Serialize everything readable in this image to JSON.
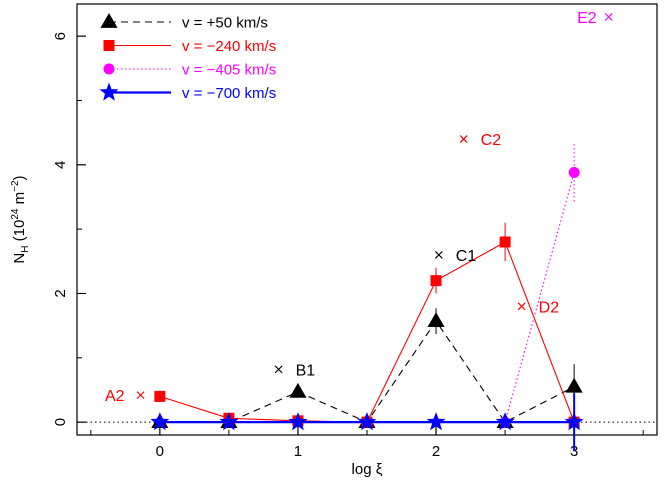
{
  "chart_data": {
    "type": "line",
    "xlabel": "log ξ",
    "ylabel_main": "N",
    "ylabel_sub": "H",
    "ylabel_unit_pre": " (10",
    "ylabel_unit_exp1": "24",
    "ylabel_unit_mid": " m",
    "ylabel_unit_exp2": "−2",
    "ylabel_unit_post": ")",
    "xlim": [
      -0.6,
      3.6
    ],
    "ylim": [
      -0.2,
      6.5
    ],
    "xticks": [
      0,
      1,
      2,
      3
    ],
    "xtick_labels": [
      "0",
      "1",
      "2",
      "3"
    ],
    "yticks": [
      0,
      2,
      4,
      6
    ],
    "ytick_labels": [
      "0",
      "2",
      "4",
      "6"
    ],
    "grid": false,
    "reference_line": {
      "y": 0,
      "style": "dotted"
    },
    "legend_position": "top-left",
    "series": [
      {
        "name": "v = +50 km/s",
        "color": "#000000",
        "marker": "triangle",
        "linestyle": "dashed",
        "x": [
          0,
          0.5,
          1,
          1.5,
          2,
          2.5,
          3
        ],
        "y": [
          0,
          0,
          0.47,
          0,
          1.57,
          0,
          0.55
        ],
        "yerr": [
          0,
          0,
          0,
          0,
          0.2,
          0,
          0.35
        ]
      },
      {
        "name": "v = −240 km/s",
        "color": "#ff0000",
        "marker": "square",
        "linestyle": "solid",
        "x": [
          0,
          0.5,
          1,
          1.5,
          2,
          2.5,
          3
        ],
        "y": [
          0.4,
          0.06,
          0.02,
          0,
          2.2,
          2.8,
          0
        ],
        "yerr": [
          0,
          0,
          0,
          0,
          0.2,
          0.3,
          0
        ]
      },
      {
        "name": "v = −405 km/s",
        "color": "#ff00ff",
        "marker": "circle",
        "linestyle": "dotted",
        "x": [
          2.5,
          3
        ],
        "y": [
          0,
          3.88
        ],
        "yerr": [
          0,
          0.45
        ]
      },
      {
        "name": "v = −700 km/s",
        "color": "#0000ff",
        "marker": "star",
        "linestyle": "solid",
        "x": [
          0,
          0.5,
          1,
          1.5,
          2,
          2.5,
          3
        ],
        "y": [
          0,
          0,
          0,
          0,
          0,
          0,
          0
        ],
        "yerr": [
          0,
          0,
          0,
          0,
          0,
          0,
          0.45
        ]
      }
    ],
    "annotations": [
      {
        "label": "A2",
        "x": -0.14,
        "y": 0.42,
        "color": "#ff0000"
      },
      {
        "label": "B1",
        "x": 0.86,
        "y": 0.82,
        "color": "#000000"
      },
      {
        "label": "C1",
        "x": 2.02,
        "y": 2.6,
        "color": "#000000"
      },
      {
        "label": "C2",
        "x": 2.2,
        "y": 4.4,
        "color": "#ff0000"
      },
      {
        "label": "D2",
        "x": 2.62,
        "y": 1.8,
        "color": "#ff0000"
      },
      {
        "label": "E2",
        "x": 3.25,
        "y": 6.3,
        "color": "#ff00ff"
      }
    ]
  }
}
